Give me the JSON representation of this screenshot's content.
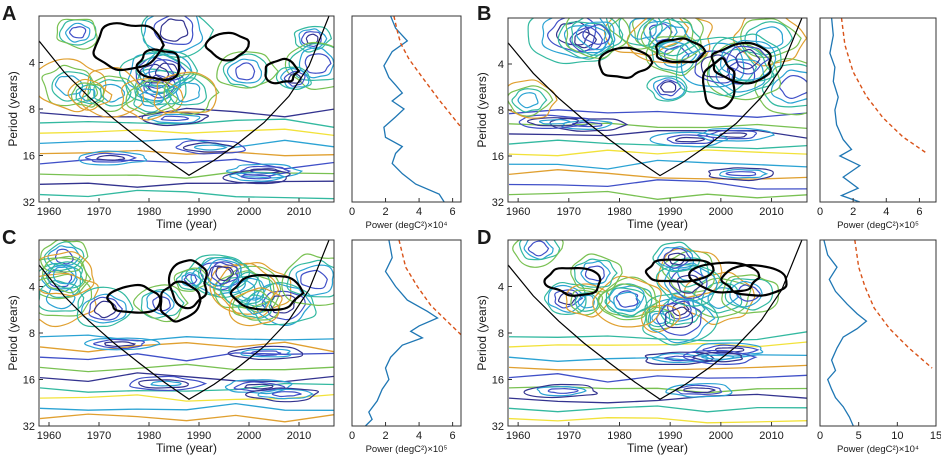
{
  "chart_data": [
    {
      "panel": "A",
      "type": "contour",
      "title": "",
      "wavelet": {
        "xlabel": "Time (year)",
        "ylabel": "Period (years)",
        "xlim": [
          1958,
          2017
        ],
        "xticks": [
          "1960",
          "1970",
          "1980",
          "1990",
          "2000",
          "2010"
        ],
        "ylim": [
          2,
          32
        ],
        "yticks": [
          "4",
          "8",
          "16",
          "32"
        ],
        "cone": [
          [
            1958,
            2.9
          ],
          [
            1963,
            4.6
          ],
          [
            1968,
            6.7
          ],
          [
            1973,
            9.3
          ],
          [
            1978,
            12.5
          ],
          [
            1983,
            16.6
          ],
          [
            1988,
            21.5
          ],
          [
            1993,
            17.2
          ],
          [
            1998,
            13.2
          ],
          [
            2003,
            9.8
          ],
          [
            2008,
            6.6
          ],
          [
            2012,
            4.2
          ],
          [
            2016,
            2.0
          ]
        ]
      },
      "global": {
        "xlabel": "Power (degC²)×10⁴",
        "xlim": [
          0,
          6.5
        ],
        "xticks": [
          "0",
          "2",
          "4",
          "6"
        ],
        "series": [
          {
            "name": "global wavelet spectrum",
            "color": "#1f77b4",
            "dashed": false,
            "points": [
              [
                2.3,
                2
              ],
              [
                2.6,
                2.4
              ],
              [
                3.3,
                2.9
              ],
              [
                2.4,
                3.4
              ],
              [
                1.9,
                4.2
              ],
              [
                2.2,
                5.0
              ],
              [
                2.6,
                5.6
              ],
              [
                3.0,
                6.3
              ],
              [
                2.4,
                7.1
              ],
              [
                3.1,
                8.0
              ],
              [
                2.6,
                9.0
              ],
              [
                1.9,
                10.5
              ],
              [
                2.0,
                12.2
              ],
              [
                3.0,
                14.0
              ],
              [
                2.6,
                15.5
              ],
              [
                2.4,
                18.0
              ],
              [
                3.0,
                21.0
              ],
              [
                3.8,
                24.5
              ],
              [
                5.2,
                28.5
              ],
              [
                5.5,
                32
              ]
            ]
          },
          {
            "name": "significance level",
            "color": "#d95319",
            "dashed": true,
            "points": [
              [
                2.5,
                2
              ],
              [
                2.7,
                2.5
              ],
              [
                2.9,
                3.0
              ],
              [
                3.4,
                3.8
              ],
              [
                4.2,
                5.0
              ],
              [
                5.2,
                7.0
              ],
              [
                6.5,
                10.5
              ]
            ]
          }
        ]
      }
    },
    {
      "panel": "B",
      "type": "contour",
      "title": "",
      "wavelet": {
        "xlabel": "Time (year)",
        "ylabel": "Period (years)",
        "xlim": [
          1958,
          2017
        ],
        "xticks": [
          "1960",
          "1970",
          "1980",
          "1990",
          "2000",
          "2010"
        ],
        "ylim": [
          2,
          32
        ],
        "yticks": [
          "4",
          "8",
          "16",
          "32"
        ],
        "cone": [
          [
            1958,
            2.9
          ],
          [
            1963,
            4.6
          ],
          [
            1968,
            6.7
          ],
          [
            1973,
            9.3
          ],
          [
            1978,
            12.5
          ],
          [
            1983,
            16.6
          ],
          [
            1988,
            21.5
          ],
          [
            1993,
            17.2
          ],
          [
            1998,
            13.2
          ],
          [
            2003,
            9.8
          ],
          [
            2008,
            6.6
          ],
          [
            2012,
            4.2
          ],
          [
            2016,
            2.0
          ]
        ]
      },
      "global": {
        "xlabel": "Power (degC²)×10⁵",
        "xlim": [
          0,
          7
        ],
        "xticks": [
          "0",
          "2",
          "4",
          "6"
        ],
        "series": [
          {
            "name": "global wavelet spectrum",
            "color": "#1f77b4",
            "dashed": false,
            "points": [
              [
                0.7,
                2
              ],
              [
                0.8,
                2.6
              ],
              [
                0.6,
                3.4
              ],
              [
                0.9,
                4.2
              ],
              [
                0.8,
                5.2
              ],
              [
                1.1,
                6.6
              ],
              [
                0.9,
                8.0
              ],
              [
                1.0,
                10.0
              ],
              [
                1.4,
                12.5
              ],
              [
                1.9,
                14.5
              ],
              [
                1.2,
                16.0
              ],
              [
                2.4,
                18.5
              ],
              [
                1.4,
                22.0
              ],
              [
                2.3,
                26.0
              ],
              [
                1.3,
                29.0
              ],
              [
                2.4,
                32
              ]
            ]
          },
          {
            "name": "significance level",
            "color": "#d95319",
            "dashed": true,
            "points": [
              [
                1.3,
                2
              ],
              [
                1.5,
                3.0
              ],
              [
                2.0,
                4.5
              ],
              [
                2.8,
                6.5
              ],
              [
                3.8,
                9.0
              ],
              [
                5.0,
                12.0
              ],
              [
                6.5,
                15.5
              ]
            ]
          }
        ]
      }
    },
    {
      "panel": "C",
      "type": "contour",
      "title": "",
      "wavelet": {
        "xlabel": "Time (year)",
        "ylabel": "Period (years)",
        "xlim": [
          1958,
          2017
        ],
        "xticks": [
          "1960",
          "1970",
          "1980",
          "1990",
          "2000",
          "2010"
        ],
        "ylim": [
          2,
          32
        ],
        "yticks": [
          "4",
          "8",
          "16",
          "32"
        ],
        "cone": [
          [
            1958,
            2.9
          ],
          [
            1963,
            4.6
          ],
          [
            1968,
            6.7
          ],
          [
            1973,
            9.3
          ],
          [
            1978,
            12.5
          ],
          [
            1983,
            16.6
          ],
          [
            1988,
            21.5
          ],
          [
            1993,
            17.2
          ],
          [
            1998,
            13.2
          ],
          [
            2003,
            9.8
          ],
          [
            2008,
            6.6
          ],
          [
            2012,
            4.2
          ],
          [
            2016,
            2.0
          ]
        ]
      },
      "global": {
        "xlabel": "Power (degC²)×10⁵",
        "xlim": [
          0,
          6.5
        ],
        "xticks": [
          "0",
          "2",
          "4",
          "6"
        ],
        "series": [
          {
            "name": "global wavelet spectrum",
            "color": "#1f77b4",
            "dashed": false,
            "points": [
              [
                2.2,
                2
              ],
              [
                2.4,
                2.6
              ],
              [
                2.0,
                3.2
              ],
              [
                2.6,
                4.0
              ],
              [
                3.3,
                4.9
              ],
              [
                4.5,
                5.8
              ],
              [
                5.1,
                6.4
              ],
              [
                4.0,
                7.2
              ],
              [
                3.5,
                7.8
              ],
              [
                4.2,
                8.6
              ],
              [
                3.0,
                9.6
              ],
              [
                2.3,
                11.5
              ],
              [
                2.0,
                13.5
              ],
              [
                2.2,
                16.0
              ],
              [
                1.8,
                18.5
              ],
              [
                1.5,
                22.0
              ],
              [
                1.0,
                26.0
              ],
              [
                1.2,
                29.0
              ],
              [
                0.8,
                32
              ]
            ]
          },
          {
            "name": "significance level",
            "color": "#d95319",
            "dashed": true,
            "points": [
              [
                2.8,
                2
              ],
              [
                3.2,
                3.0
              ],
              [
                3.9,
                4.0
              ],
              [
                4.7,
                5.3
              ],
              [
                5.6,
                6.6
              ],
              [
                6.5,
                8.2
              ]
            ]
          }
        ]
      }
    },
    {
      "panel": "D",
      "type": "contour",
      "title": "",
      "wavelet": {
        "xlabel": "Time (year)",
        "ylabel": "Period (years)",
        "xlim": [
          1958,
          2017
        ],
        "xticks": [
          "1960",
          "1970",
          "1980",
          "1990",
          "2000",
          "2010"
        ],
        "ylim": [
          2,
          32
        ],
        "yticks": [
          "4",
          "8",
          "16",
          "32"
        ],
        "cone": [
          [
            1958,
            2.9
          ],
          [
            1963,
            4.6
          ],
          [
            1968,
            6.7
          ],
          [
            1973,
            9.3
          ],
          [
            1978,
            12.5
          ],
          [
            1983,
            16.6
          ],
          [
            1988,
            21.5
          ],
          [
            1993,
            17.2
          ],
          [
            1998,
            13.2
          ],
          [
            2003,
            9.8
          ],
          [
            2008,
            6.6
          ],
          [
            2012,
            4.2
          ],
          [
            2016,
            2.0
          ]
        ]
      },
      "global": {
        "xlabel": "Power (degC²)×10⁴",
        "xlim": [
          0,
          15
        ],
        "xticks": [
          "0",
          "5",
          "10",
          "15"
        ],
        "series": [
          {
            "name": "global wavelet spectrum",
            "color": "#1f77b4",
            "dashed": false,
            "points": [
              [
                0.5,
                2
              ],
              [
                1.0,
                2.5
              ],
              [
                2.2,
                3.0
              ],
              [
                1.2,
                3.6
              ],
              [
                2.0,
                4.3
              ],
              [
                3.5,
                5.2
              ],
              [
                4.8,
                6.0
              ],
              [
                6.0,
                6.7
              ],
              [
                4.8,
                7.5
              ],
              [
                3.0,
                8.5
              ],
              [
                2.2,
                10.0
              ],
              [
                1.5,
                12.0
              ],
              [
                2.0,
                14.0
              ],
              [
                1.0,
                16.0
              ],
              [
                1.5,
                18.5
              ],
              [
                2.0,
                21.0
              ],
              [
                3.0,
                24.0
              ],
              [
                3.8,
                28.0
              ],
              [
                4.3,
                32
              ]
            ]
          },
          {
            "name": "significance level",
            "color": "#d95319",
            "dashed": true,
            "points": [
              [
                4.5,
                2
              ],
              [
                5.0,
                3.0
              ],
              [
                5.8,
                4.0
              ],
              [
                7.0,
                5.5
              ],
              [
                9.0,
                7.5
              ],
              [
                11.5,
                10.0
              ],
              [
                14.5,
                13.5
              ]
            ]
          }
        ]
      }
    }
  ]
}
